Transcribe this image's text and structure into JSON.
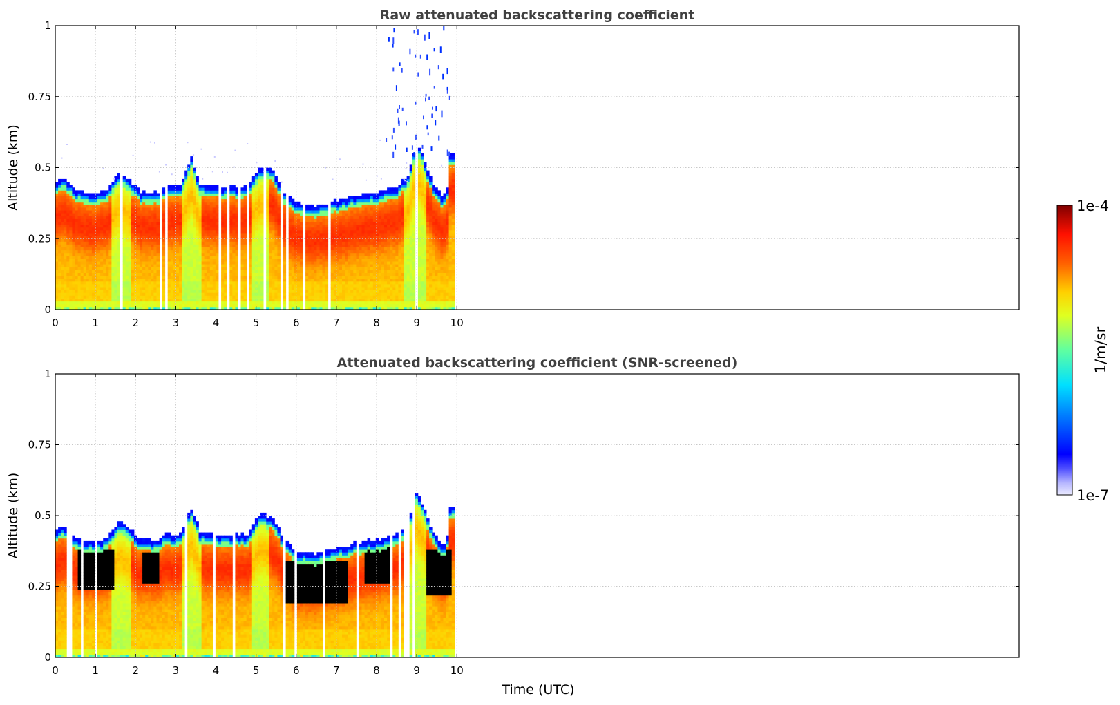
{
  "figure": {
    "xlabel": "Time (UTC)",
    "colorbar": {
      "label": "1/m/sr",
      "max_label": "1e-4",
      "min_label": "1e-7",
      "scale": "log",
      "colormap": "jet",
      "vmin": 1e-07,
      "vmax": 0.0001
    }
  },
  "chart_data": [
    {
      "type": "heatmap",
      "title": "Raw attenuated backscattering coefficient",
      "ylabel": "Altitude (km)",
      "xlim": [
        0,
        24
      ],
      "ylim": [
        0,
        1
      ],
      "xticks": [
        0,
        1,
        2,
        3,
        4,
        5,
        6,
        7,
        8,
        9,
        10
      ],
      "xtick_labels": [
        "0",
        "1",
        "2",
        "3",
        "4",
        "5",
        "6",
        "7",
        "8",
        "9",
        "10"
      ],
      "yticks": [
        0,
        0.25,
        0.5,
        0.75,
        1
      ],
      "ytick_labels": [
        "0",
        "0.25",
        "0.5",
        "0.75",
        "1"
      ],
      "grid": true,
      "data_time_range": [
        0,
        9.9
      ],
      "boundary_layer_top_km": {
        "time": [
          0,
          0.2,
          0.5,
          1.0,
          1.3,
          1.6,
          1.8,
          2.1,
          2.5,
          2.8,
          3.1,
          3.4,
          3.6,
          4.0,
          4.5,
          4.8,
          5.1,
          5.4,
          5.7,
          6.0,
          6.5,
          7.0,
          7.5,
          8.0,
          8.5,
          8.8,
          9.0,
          9.2,
          9.4,
          9.6,
          9.75,
          9.85,
          9.9
        ],
        "altitude": [
          0.44,
          0.46,
          0.42,
          0.4,
          0.42,
          0.48,
          0.46,
          0.41,
          0.41,
          0.43,
          0.43,
          0.53,
          0.44,
          0.43,
          0.43,
          0.43,
          0.5,
          0.49,
          0.41,
          0.37,
          0.36,
          0.38,
          0.4,
          0.41,
          0.43,
          0.47,
          0.59,
          0.52,
          0.44,
          0.4,
          0.4,
          0.57,
          0.54
        ]
      },
      "sparse_returns": true
    },
    {
      "type": "heatmap",
      "title": "Attenuated backscattering coefficient (SNR-screened)",
      "ylabel": "Altitude (km)",
      "xlim": [
        0,
        24
      ],
      "ylim": [
        0,
        1
      ],
      "xticks": [
        0,
        1,
        2,
        3,
        4,
        5,
        6,
        7,
        8,
        9,
        10
      ],
      "xtick_labels": [
        "0",
        "1",
        "2",
        "3",
        "4",
        "5",
        "6",
        "7",
        "8",
        "9",
        "10"
      ],
      "yticks": [
        0,
        0.25,
        0.5,
        0.75,
        1
      ],
      "ytick_labels": [
        "0",
        "0.25",
        "0.5",
        "0.75",
        "1"
      ],
      "grid": true,
      "data_time_range": [
        0,
        9.9
      ],
      "boundary_layer_top_km": {
        "time": [
          0,
          0.2,
          0.5,
          1.0,
          1.3,
          1.6,
          1.8,
          2.1,
          2.5,
          2.8,
          3.1,
          3.4,
          3.6,
          4.0,
          4.5,
          4.8,
          5.1,
          5.4,
          5.7,
          6.0,
          6.5,
          7.0,
          7.5,
          8.0,
          8.5,
          8.8,
          9.0,
          9.2,
          9.4,
          9.6,
          9.75,
          9.85,
          9.9
        ],
        "altitude": [
          0.44,
          0.46,
          0.42,
          0.4,
          0.42,
          0.48,
          0.46,
          0.41,
          0.41,
          0.43,
          0.43,
          0.52,
          0.44,
          0.43,
          0.43,
          0.43,
          0.5,
          0.49,
          0.41,
          0.37,
          0.36,
          0.38,
          0.4,
          0.41,
          0.43,
          0.47,
          0.58,
          0.52,
          0.44,
          0.4,
          0.4,
          0.55,
          0.53
        ]
      },
      "screened_regions_km": [
        {
          "t0": 0.55,
          "t1": 1.45,
          "bottom": 0.24,
          "top": 0.38
        },
        {
          "t0": 2.2,
          "t1": 2.6,
          "bottom": 0.26,
          "top": 0.37
        },
        {
          "t0": 5.75,
          "t1": 7.3,
          "bottom": 0.19,
          "top": 0.34
        },
        {
          "t0": 7.7,
          "t1": 8.4,
          "bottom": 0.26,
          "top": 0.4
        },
        {
          "t0": 9.25,
          "t1": 9.9,
          "bottom": 0.22,
          "top": 0.38
        }
      ]
    }
  ]
}
